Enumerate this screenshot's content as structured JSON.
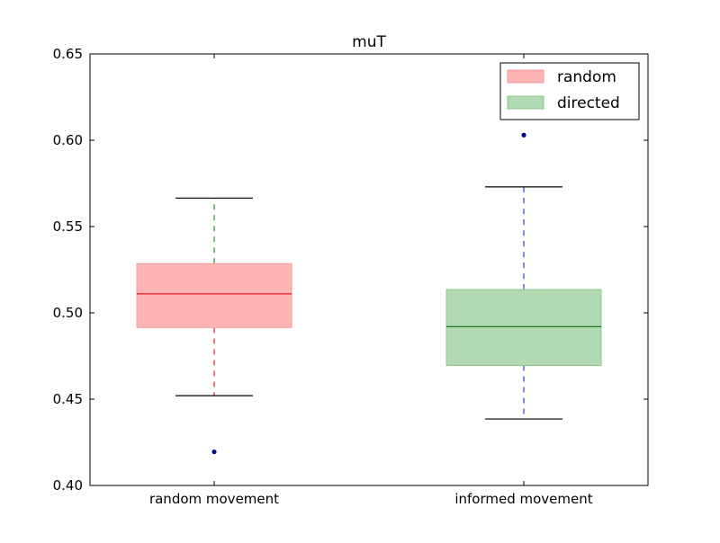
{
  "chart_data": {
    "type": "box",
    "title": "muT",
    "xlabel": "",
    "ylabel": "",
    "ylim": [
      0.4,
      0.65
    ],
    "yticks": [
      0.4,
      0.45,
      0.5,
      0.55,
      0.6,
      0.65
    ],
    "ytick_labels": [
      "0.40",
      "0.45",
      "0.50",
      "0.55",
      "0.60",
      "0.65"
    ],
    "categories": [
      "random movement",
      "informed movement"
    ],
    "series": [
      {
        "name": "random",
        "category": "random movement",
        "whisker_low": 0.452,
        "q1": 0.4915,
        "median": 0.511,
        "q3": 0.5285,
        "whisker_high": 0.5665,
        "outliers": [
          0.4195
        ],
        "fill_color": "#ffb3b3",
        "edge_color": "#f49a9a",
        "median_color": "#e31a1c",
        "whisker_low_color": "#e31a1c",
        "whisker_high_color": "#2a8a2a"
      },
      {
        "name": "directed",
        "category": "informed movement",
        "whisker_low": 0.4385,
        "q1": 0.4695,
        "median": 0.492,
        "q3": 0.5135,
        "whisker_high": 0.573,
        "outliers": [
          0.603
        ],
        "fill_color": "#b2dab2",
        "edge_color": "#8cc78c",
        "median_color": "#1a7a1a",
        "whisker_low_color": "#1f3fd6",
        "whisker_high_color": "#1f3fd6"
      }
    ],
    "legend": {
      "placement": "top-right",
      "entries": [
        "random",
        "directed"
      ]
    },
    "grid": false,
    "outlier_color": "#00008b"
  }
}
